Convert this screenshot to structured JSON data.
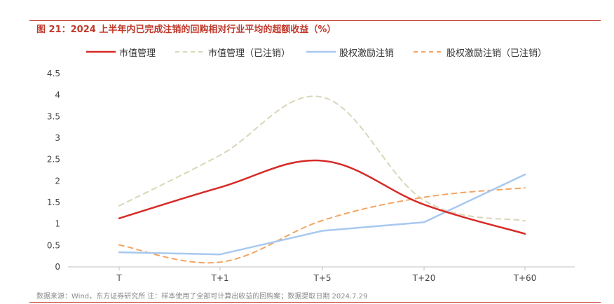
{
  "header": {
    "title": "图 21：2024 上半年内已完成注销的回购相对行业平均的超额收益（%）"
  },
  "footer": {
    "source": "数据来源：Wind，东方证券研究所    注：样本使用了全部可计算出收益的回购案；数据提取日期 2024.7.29"
  },
  "chart_data": {
    "type": "line",
    "title": "图 21：2024 上半年内已完成注销的回购相对行业平均的超额收益（%）",
    "categories": [
      "T",
      "T+1",
      "T+5",
      "T+20",
      "T+60"
    ],
    "ylim": [
      0,
      4.5
    ],
    "yticks": [
      0,
      0.5,
      1,
      1.5,
      2,
      2.5,
      3,
      3.5,
      4,
      4.5
    ],
    "ytick_labels": [
      "0",
      "0.5",
      "1",
      "1.5",
      "2",
      "2.5",
      "3",
      "3.5",
      "4",
      "4.5"
    ],
    "grid": false,
    "legend_position": "top-center",
    "series": [
      {
        "name": "市值管理",
        "values": [
          1.13,
          1.85,
          2.47,
          1.45,
          0.77
        ],
        "color": "#d62b27",
        "dashed": false,
        "smooth": true
      },
      {
        "name": "市值管理（已注销）",
        "values": [
          1.42,
          2.6,
          3.95,
          1.55,
          1.07
        ],
        "color": "#d9d6b8",
        "dashed": true,
        "smooth": true
      },
      {
        "name": "股权激励注销",
        "values": [
          0.34,
          0.29,
          0.84,
          1.04,
          2.15
        ],
        "color": "#a8c8f0",
        "dashed": false,
        "smooth": false
      },
      {
        "name": "股权激励注销（已注销）",
        "values": [
          0.51,
          0.11,
          1.08,
          1.62,
          1.84
        ],
        "color": "#f4a460",
        "dashed": true,
        "smooth": true
      }
    ]
  }
}
